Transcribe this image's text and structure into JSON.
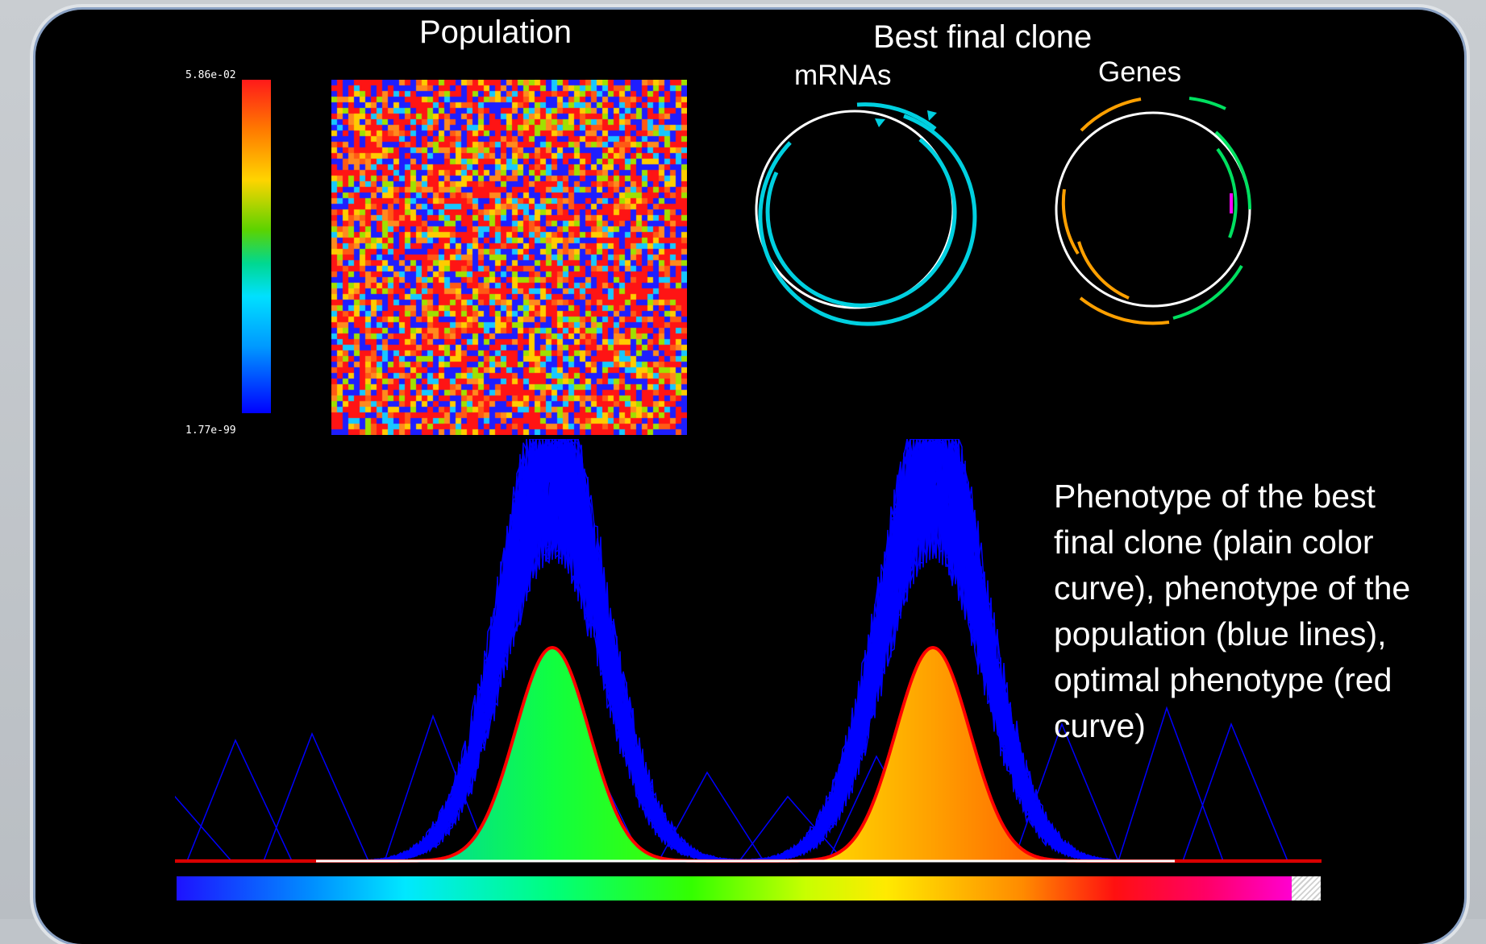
{
  "labels": {
    "population": "Population",
    "best_final_clone": "Best final clone",
    "mrnas": "mRNAs",
    "genes": "Genes"
  },
  "color_scale": {
    "max_label": "5.86e-02",
    "min_label": "1.77e-99"
  },
  "caption": "Phenotype of the best final clone (plain color curve), phenotype of the population (blue lines), optimal phenotype (red curve)",
  "colors": {
    "panel_background": "#000000",
    "population_lines": "#0000ff",
    "optimal_curve": "#ff0000",
    "mrna_arcs": "#00d0e0",
    "gene_orange": "#ffa000",
    "gene_green": "#00e060",
    "gene_magenta": "#ff00ff"
  },
  "heatmap_palette": [
    "#ff1414",
    "#ff1414",
    "#ff1414",
    "#ff1414",
    "#ff5a14",
    "#ff8a1e",
    "#1e1eff",
    "#1e1eff",
    "#1e1eff",
    "#ffcc00",
    "#18c8ff",
    "#a0e000"
  ]
}
